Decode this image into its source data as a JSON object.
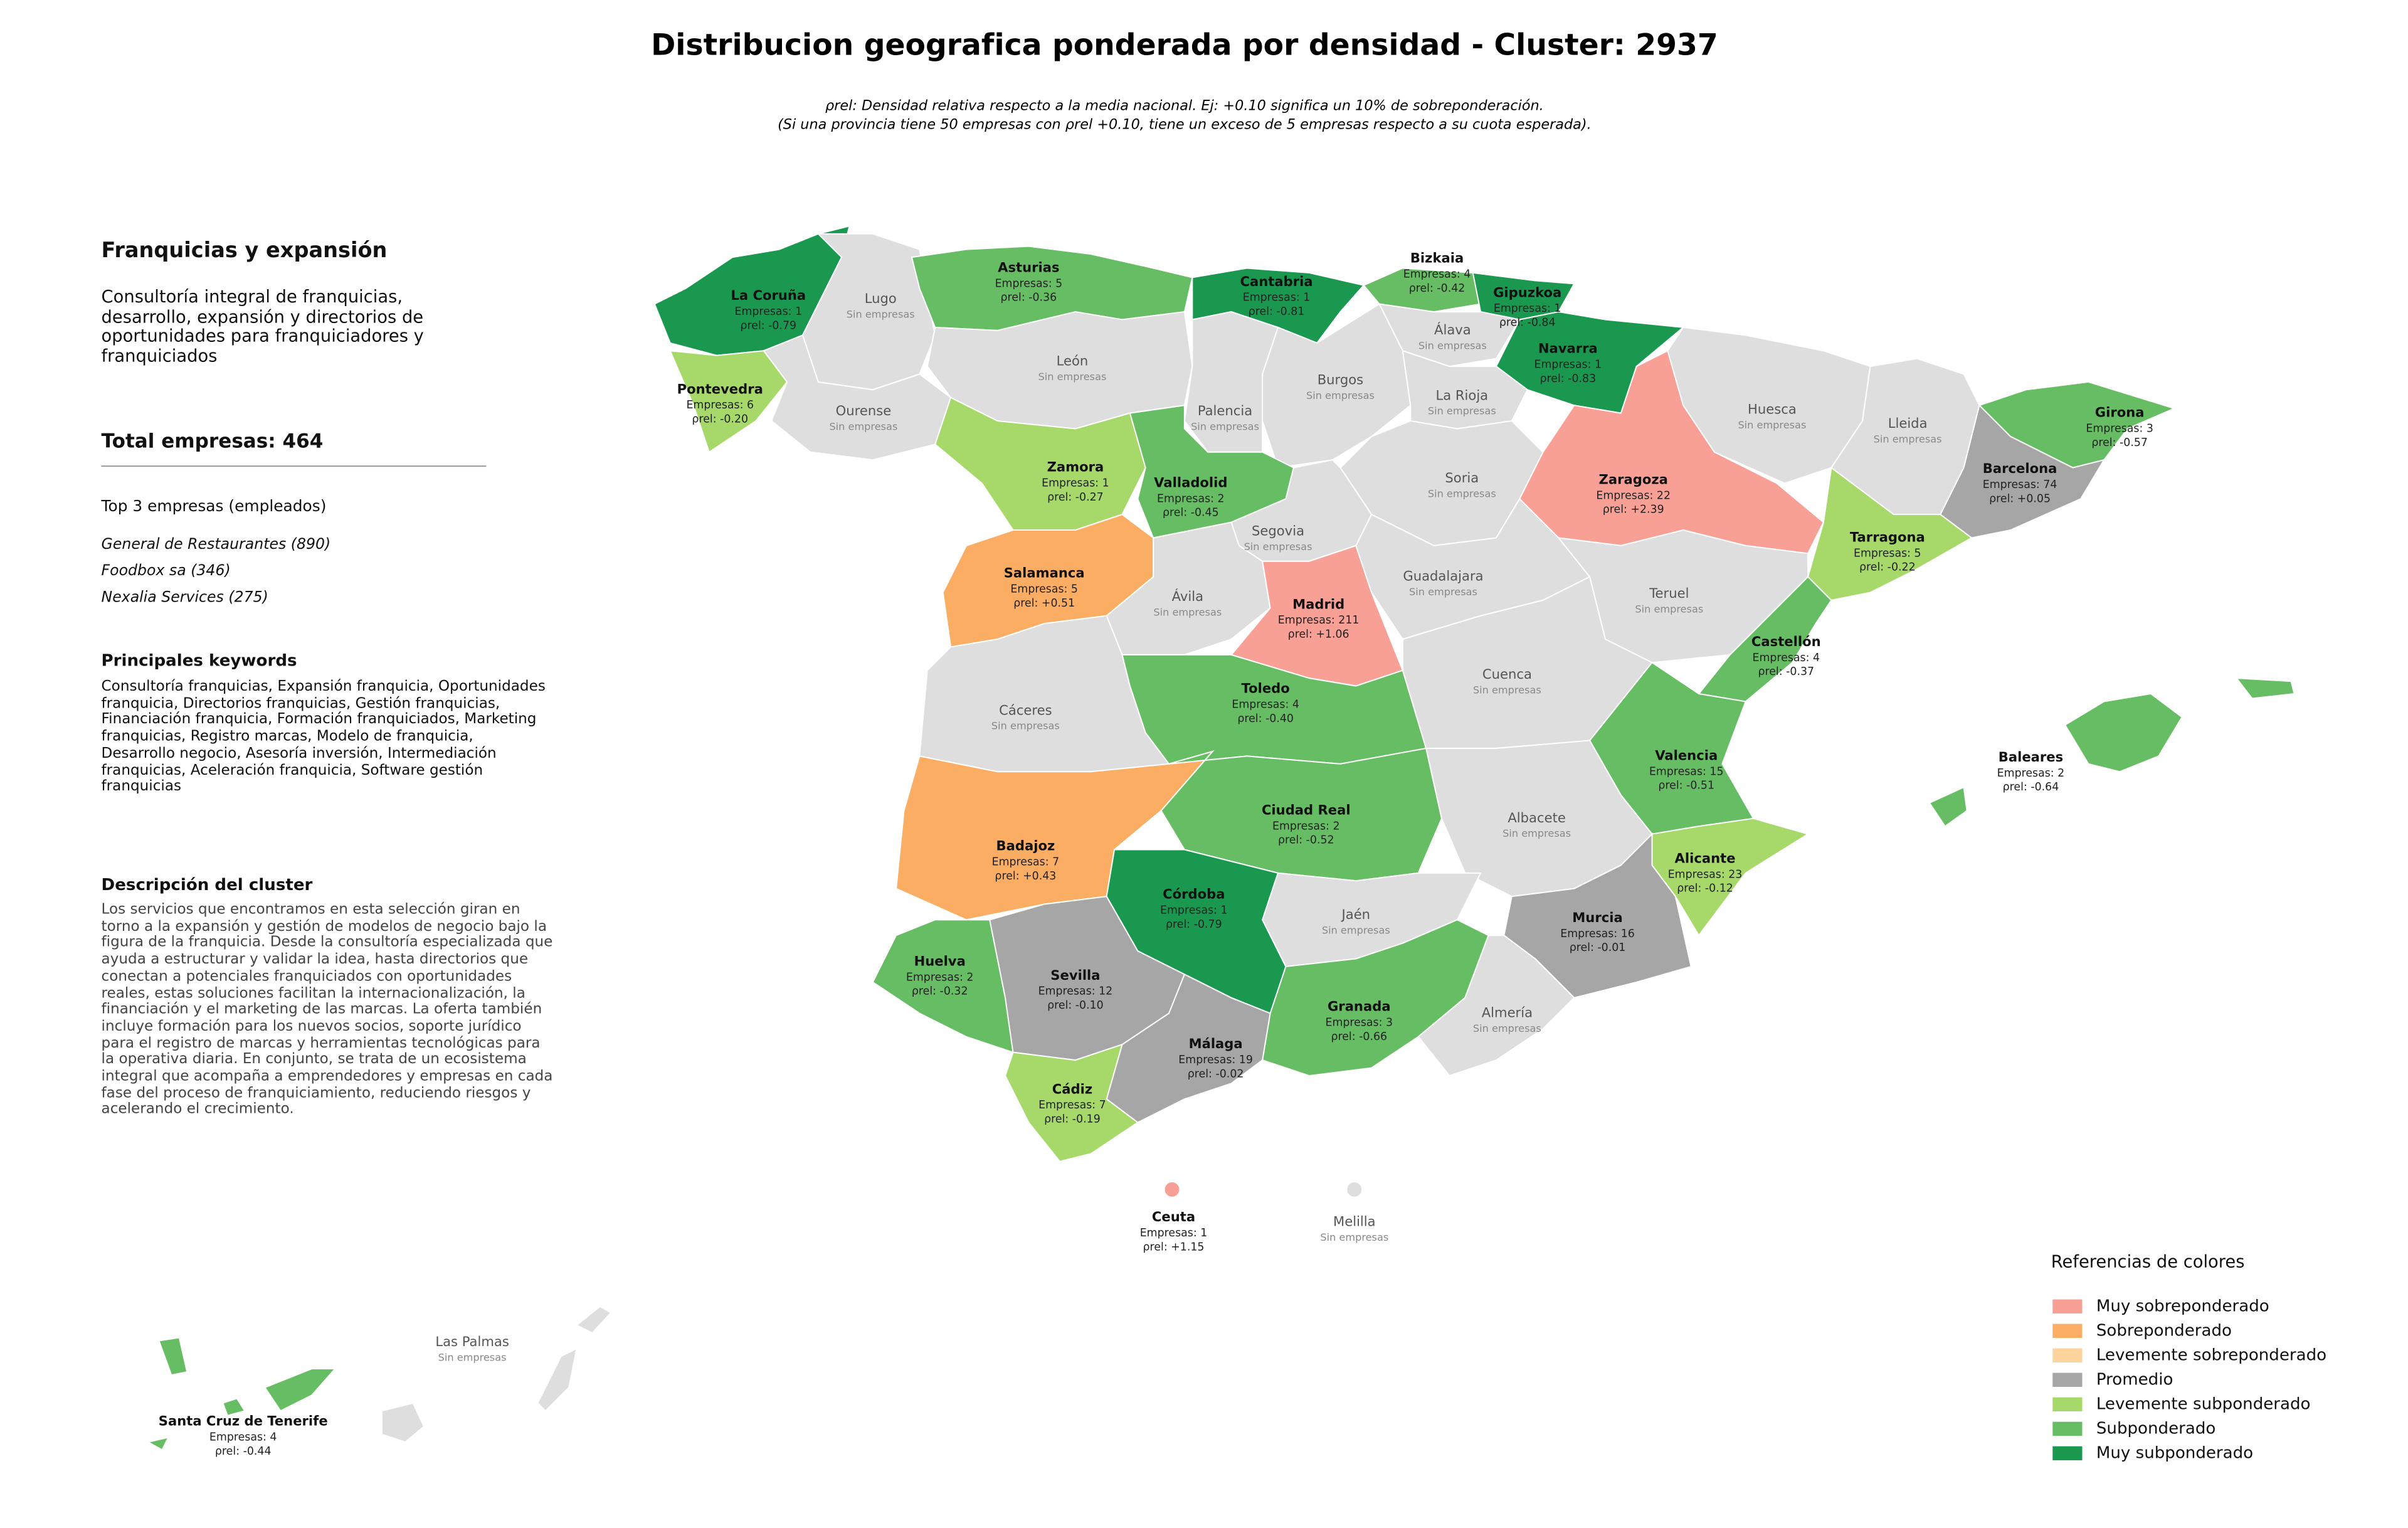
{
  "title": "Distribucion geografica ponderada por densidad - Cluster: 2937",
  "subtitle": [
    "ρrel: Densidad relativa respecto a la media nacional. Ej: +0.10 significa un 10% de sobreponderación.",
    "(Si una provincia tiene 50 empresas con ρrel +0.10, tiene un exceso de 5 empresas respecto a su cuota esperada)."
  ],
  "panel": {
    "heading": "Franquicias y expansión",
    "description": "Consultoría integral de franquicias, desarrollo, expansión y directorios de oportunidades para franquiciadores y franquiciados",
    "total": "Total empresas: 464",
    "top_heading": "Top 3 empresas (empleados)",
    "top_items": [
      "General de Restaurantes (890)",
      "Foodbox sa (346)",
      "Nexalia Services (275)"
    ],
    "keywords_heading": "Principales keywords",
    "keywords": "Consultoría franquicias, Expansión franquicia, Oportunidades franquicia, Directorios franquicias, Gestión franquicias, Financiación franquicia, Formación franquiciados, Marketing franquicias, Registro marcas, Modelo de franquicia, Desarrollo negocio, Asesoría inversión, Intermediación franquicias, Aceleración franquicia, Software gestión franquicias",
    "cluster_heading": "Descripción del cluster",
    "cluster_text": "Los servicios que encontramos en esta selección giran en torno a la expansión y gestión de modelos de negocio bajo la figura de la franquicia. Desde la consultoría especializada que ayuda a estructurar y validar la idea, hasta directorios que conectan a potenciales franquiciados con oportunidades reales, estas soluciones facilitan la internacionalización, la financiación y el marketing de las marcas. La oferta también incluye formación para los nuevos socios, soporte jurídico para el registro de marcas y herramientas tecnológicas para la operativa diaria. En conjunto, se trata de un ecosistema integral que acompaña a emprendedores y empresas en cada fase del proceso de franquiciamiento, reduciendo riesgos y acelerando el crecimiento."
  },
  "provinces": [
    {
      "name": "La Coruña",
      "empresas_label": "Empresas: 1",
      "rho": -0.79,
      "rho_label": "ρrel: -0.79",
      "color": "#1a9850"
    },
    {
      "name": "Lugo",
      "note": "Sin empresas",
      "color": "#dedede"
    },
    {
      "name": "Asturias",
      "empresas_label": "Empresas: 5",
      "rho": -0.36,
      "rho_label": "ρrel: -0.36",
      "color": "#66bd63"
    },
    {
      "name": "Cantabria",
      "empresas_label": "Empresas: 1",
      "rho": -0.81,
      "rho_label": "ρrel: -0.81",
      "color": "#1a9850"
    },
    {
      "name": "Bizkaia",
      "empresas_label": "Empresas: 4",
      "rho": -0.42,
      "rho_label": "ρrel: -0.42",
      "color": "#66bd63"
    },
    {
      "name": "Gipuzkoa",
      "empresas_label": "Empresas: 1",
      "rho": -0.84,
      "rho_label": "ρrel: -0.84",
      "color": "#1a9850"
    },
    {
      "name": "Álava",
      "note": "Sin empresas",
      "color": "#dedede"
    },
    {
      "name": "Navarra",
      "empresas_label": "Empresas: 1",
      "rho": -0.83,
      "rho_label": "ρrel: -0.83",
      "color": "#1a9850"
    },
    {
      "name": "Pontevedra",
      "empresas_label": "Empresas: 6",
      "rho": -0.2,
      "rho_label": "ρrel: -0.20",
      "color": "#a6d96a"
    },
    {
      "name": "Ourense",
      "note": "Sin empresas",
      "color": "#dedede"
    },
    {
      "name": "León",
      "note": "Sin empresas",
      "color": "#dedede"
    },
    {
      "name": "Palencia",
      "note": "Sin empresas",
      "color": "#dedede"
    },
    {
      "name": "Burgos",
      "note": "Sin empresas",
      "color": "#dedede"
    },
    {
      "name": "La Rioja",
      "note": "Sin empresas",
      "color": "#dedede"
    },
    {
      "name": "Zamora",
      "empresas_label": "Empresas: 1",
      "rho": -0.27,
      "rho_label": "ρrel: -0.27",
      "color": "#a6d96a"
    },
    {
      "name": "Valladolid",
      "empresas_label": "Empresas: 2",
      "rho": -0.45,
      "rho_label": "ρrel: -0.45",
      "color": "#66bd63"
    },
    {
      "name": "Soria",
      "note": "Sin empresas",
      "color": "#dedede"
    },
    {
      "name": "Segovia",
      "note": "Sin empresas",
      "color": "#dedede"
    },
    {
      "name": "Zaragoza",
      "empresas_label": "Empresas: 22",
      "rho": 2.39,
      "rho_label": "ρrel: +2.39",
      "color": "#f8a096"
    },
    {
      "name": "Huesca",
      "note": "Sin empresas",
      "color": "#dedede"
    },
    {
      "name": "Lleida",
      "note": "Sin empresas",
      "color": "#dedede"
    },
    {
      "name": "Girona",
      "empresas_label": "Empresas: 3",
      "rho": -0.57,
      "rho_label": "ρrel: -0.57",
      "color": "#66bd63"
    },
    {
      "name": "Barcelona",
      "empresas_label": "Empresas: 74",
      "rho": 0.05,
      "rho_label": "ρrel: +0.05",
      "color": "#a6a6a6"
    },
    {
      "name": "Tarragona",
      "empresas_label": "Empresas: 5",
      "rho": -0.22,
      "rho_label": "ρrel: -0.22",
      "color": "#a6d96a"
    },
    {
      "name": "Salamanca",
      "empresas_label": "Empresas: 5",
      "rho": 0.51,
      "rho_label": "ρrel: +0.51",
      "color": "#fbad63"
    },
    {
      "name": "Ávila",
      "note": "Sin empresas",
      "color": "#dedede"
    },
    {
      "name": "Madrid",
      "empresas_label": "Empresas: 211",
      "rho": 1.06,
      "rho_label": "ρrel: +1.06",
      "color": "#f8a096"
    },
    {
      "name": "Guadalajara",
      "note": "Sin empresas",
      "color": "#dedede"
    },
    {
      "name": "Teruel",
      "note": "Sin empresas",
      "color": "#dedede"
    },
    {
      "name": "Castellón",
      "empresas_label": "Empresas: 4",
      "rho": -0.37,
      "rho_label": "ρrel: -0.37",
      "color": "#66bd63"
    },
    {
      "name": "Cáceres",
      "note": "Sin empresas",
      "color": "#dedede"
    },
    {
      "name": "Toledo",
      "empresas_label": "Empresas: 4",
      "rho": -0.4,
      "rho_label": "ρrel: -0.40",
      "color": "#66bd63"
    },
    {
      "name": "Cuenca",
      "note": "Sin empresas",
      "color": "#dedede"
    },
    {
      "name": "Valencia",
      "empresas_label": "Empresas: 15",
      "rho": -0.51,
      "rho_label": "ρrel: -0.51",
      "color": "#66bd63"
    },
    {
      "name": "Badajoz",
      "empresas_label": "Empresas: 7",
      "rho": 0.43,
      "rho_label": "ρrel: +0.43",
      "color": "#fbad63"
    },
    {
      "name": "Ciudad Real",
      "empresas_label": "Empresas: 2",
      "rho": -0.52,
      "rho_label": "ρrel: -0.52",
      "color": "#66bd63"
    },
    {
      "name": "Albacete",
      "note": "Sin empresas",
      "color": "#dedede"
    },
    {
      "name": "Alicante",
      "empresas_label": "Empresas: 23",
      "rho": -0.12,
      "rho_label": "ρrel: -0.12",
      "color": "#a6d96a"
    },
    {
      "name": "Córdoba",
      "empresas_label": "Empresas: 1",
      "rho": -0.79,
      "rho_label": "ρrel: -0.79",
      "color": "#1a9850"
    },
    {
      "name": "Jaén",
      "note": "Sin empresas",
      "color": "#dedede"
    },
    {
      "name": "Murcia",
      "empresas_label": "Empresas: 16",
      "rho": -0.01,
      "rho_label": "ρrel: -0.01",
      "color": "#a6a6a6"
    },
    {
      "name": "Huelva",
      "empresas_label": "Empresas: 2",
      "rho": -0.32,
      "rho_label": "ρrel: -0.32",
      "color": "#66bd63"
    },
    {
      "name": "Sevilla",
      "empresas_label": "Empresas: 12",
      "rho": -0.1,
      "rho_label": "ρrel: -0.10",
      "color": "#a6a6a6"
    },
    {
      "name": "Granada",
      "empresas_label": "Empresas: 3",
      "rho": -0.66,
      "rho_label": "ρrel: -0.66",
      "color": "#66bd63"
    },
    {
      "name": "Almería",
      "note": "Sin empresas",
      "color": "#dedede"
    },
    {
      "name": "Málaga",
      "empresas_label": "Empresas: 19",
      "rho": -0.02,
      "rho_label": "ρrel: -0.02",
      "color": "#a6a6a6"
    },
    {
      "name": "Cádiz",
      "empresas_label": "Empresas: 7",
      "rho": -0.19,
      "rho_label": "ρrel: -0.19",
      "color": "#a6d96a"
    },
    {
      "name": "Baleares",
      "empresas_label": "Empresas: 2",
      "rho": -0.64,
      "rho_label": "ρrel: -0.64",
      "color": "#66bd63"
    },
    {
      "name": "Ceuta",
      "empresas_label": "Empresas: 1",
      "rho": 1.15,
      "rho_label": "ρrel: +1.15",
      "color": "#f8a096"
    },
    {
      "name": "Melilla",
      "note": "Sin empresas",
      "color": "#dedede"
    },
    {
      "name": "Santa Cruz de Tenerife",
      "empresas_label": "Empresas: 4",
      "rho": -0.44,
      "rho_label": "ρrel: -0.44",
      "color": "#66bd63"
    },
    {
      "name": "Las Palmas",
      "note": "Sin empresas",
      "color": "#dedede"
    }
  ],
  "legend": {
    "title": "Referencias de colores",
    "items": [
      {
        "label": "Muy sobreponderado",
        "color": "#f8a096"
      },
      {
        "label": "Sobreponderado",
        "color": "#fbad63"
      },
      {
        "label": "Levemente sobreponderado",
        "color": "#fdd49e"
      },
      {
        "label": "Promedio",
        "color": "#a6a6a6"
      },
      {
        "label": "Levemente subponderado",
        "color": "#a6d96a"
      },
      {
        "label": "Subponderado",
        "color": "#66bd63"
      },
      {
        "label": "Muy subponderado",
        "color": "#1a9850"
      }
    ]
  }
}
